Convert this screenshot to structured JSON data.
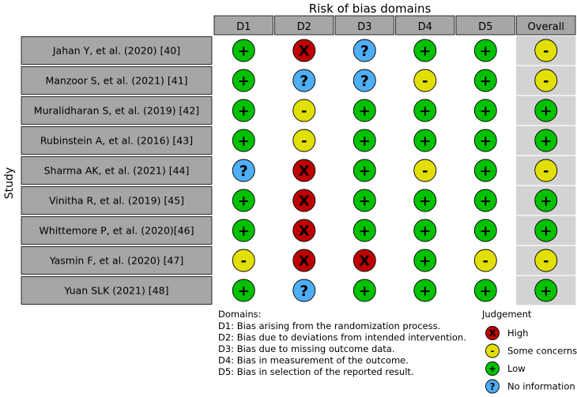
{
  "chart_data": {
    "type": "table",
    "title": "Risk of bias domains",
    "ylabel": "Study",
    "columns": [
      "D1",
      "D2",
      "D3",
      "D4",
      "D5",
      "Overall"
    ],
    "studies": [
      "Jahan Y, et al. (2020) [40]",
      "Manzoor S, et al. (2021) [41]",
      "Muralidharan S, et al. (2019) [42]",
      "Rubinstein A, et al. (2016) [43]",
      "Sharma AK, et al. (2021) [44]",
      "Vinitha R, et al. (2019) [45]",
      "Whittemore P, et al. (2020)[46]",
      "Yasmin F, et al. (2020) [47]",
      "Yuan SLK (2021) [48]"
    ],
    "judgements": [
      [
        "low",
        "high",
        "noinfo",
        "low",
        "low",
        "some"
      ],
      [
        "low",
        "noinfo",
        "noinfo",
        "some",
        "low",
        "some"
      ],
      [
        "low",
        "some",
        "low",
        "low",
        "low",
        "low"
      ],
      [
        "low",
        "some",
        "low",
        "low",
        "low",
        "low"
      ],
      [
        "noinfo",
        "high",
        "low",
        "some",
        "low",
        "some"
      ],
      [
        "low",
        "high",
        "low",
        "low",
        "low",
        "low"
      ],
      [
        "low",
        "high",
        "low",
        "low",
        "low",
        "low"
      ],
      [
        "some",
        "high",
        "high",
        "low",
        "some",
        "some"
      ],
      [
        "low",
        "noinfo",
        "low",
        "low",
        "low",
        "low"
      ]
    ],
    "judgement_types": {
      "high": {
        "symbol": "X",
        "color": "#bf0000"
      },
      "some": {
        "symbol": "-",
        "color": "#e2df07"
      },
      "low": {
        "symbol": "+",
        "color": "#02c100"
      },
      "noinfo": {
        "symbol": "?",
        "color": "#4eaef6"
      }
    },
    "domains_title": "Domains:",
    "domains": [
      "D1: Bias arising from the randomization process.",
      "D2: Bias due to deviations from intended intervention.",
      "D3: Bias due to missing outcome data.",
      "D4: Bias in measurement of the outcome.",
      "D5: Bias in selection of the reported result."
    ],
    "legend_title": "Judgement",
    "legend": [
      {
        "key": "high",
        "label": "High"
      },
      {
        "key": "some",
        "label": "Some concerns"
      },
      {
        "key": "low",
        "label": "Low"
      },
      {
        "key": "noinfo",
        "label": "No information"
      }
    ]
  }
}
